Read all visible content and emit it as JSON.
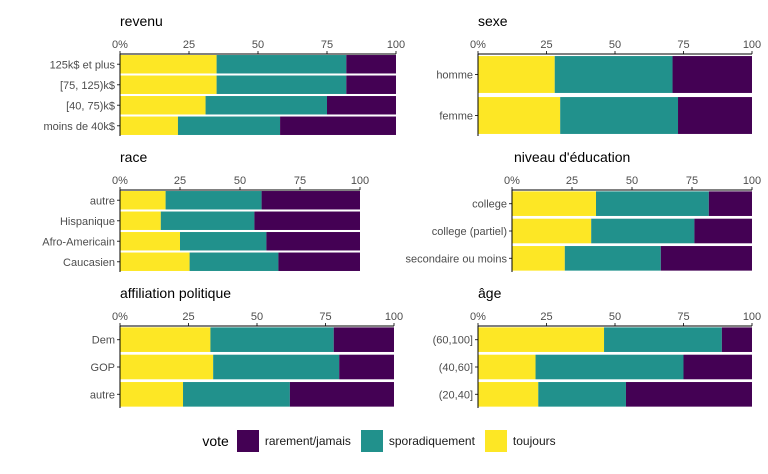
{
  "chart_data": [
    {
      "type": "bar",
      "title": "revenu",
      "categories": [
        "125k$ et plus",
        "[75, 125)k$",
        "[40, 75)k$",
        "moins de 40k$"
      ],
      "series": [
        {
          "name": "toujours",
          "values": [
            35,
            35,
            31,
            21
          ]
        },
        {
          "name": "sporadiquement",
          "values": [
            47,
            47,
            44,
            37
          ]
        },
        {
          "name": "rarement/jamais",
          "values": [
            18,
            18,
            25,
            42
          ]
        }
      ],
      "xlim": [
        0,
        100
      ],
      "xticks": [
        "0%",
        "25",
        "50",
        "75",
        "100"
      ]
    },
    {
      "type": "bar",
      "title": "sexe",
      "categories": [
        "homme",
        "femme"
      ],
      "series": [
        {
          "name": "toujours",
          "values": [
            28,
            30
          ]
        },
        {
          "name": "sporadiquement",
          "values": [
            43,
            43
          ]
        },
        {
          "name": "rarement/jamais",
          "values": [
            29,
            27
          ]
        }
      ],
      "xlim": [
        0,
        100
      ],
      "xticks": [
        "0%",
        "25",
        "50",
        "75",
        "100"
      ]
    },
    {
      "type": "bar",
      "title": "race",
      "categories": [
        "autre",
        "Hispanique",
        "Afro-Americain",
        "Caucasien"
      ],
      "series": [
        {
          "name": "toujours",
          "values": [
            19,
            17,
            25,
            29
          ]
        },
        {
          "name": "sporadiquement",
          "values": [
            40,
            39,
            36,
            37
          ]
        },
        {
          "name": "rarement/jamais",
          "values": [
            41,
            44,
            39,
            34
          ]
        }
      ],
      "xlim": [
        0,
        100
      ],
      "xticks": [
        "0%",
        "25",
        "50",
        "75",
        "100"
      ]
    },
    {
      "type": "bar",
      "title": "niveau d'éducation",
      "categories": [
        "college",
        "college (partiel)",
        "secondaire ou moins"
      ],
      "series": [
        {
          "name": "toujours",
          "values": [
            35,
            33,
            22
          ]
        },
        {
          "name": "sporadiquement",
          "values": [
            47,
            43,
            40
          ]
        },
        {
          "name": "rarement/jamais",
          "values": [
            18,
            24,
            38
          ]
        }
      ],
      "xlim": [
        0,
        100
      ],
      "xticks": [
        "0%",
        "25",
        "50",
        "75",
        "100"
      ]
    },
    {
      "type": "bar",
      "title": "affiliation politique",
      "categories": [
        "Dem",
        "GOP",
        "autre"
      ],
      "series": [
        {
          "name": "toujours",
          "values": [
            33,
            34,
            23
          ]
        },
        {
          "name": "sporadiquement",
          "values": [
            45,
            46,
            39
          ]
        },
        {
          "name": "rarement/jamais",
          "values": [
            22,
            20,
            38
          ]
        }
      ],
      "xlim": [
        0,
        100
      ],
      "xticks": [
        "0%",
        "25",
        "50",
        "75",
        "100"
      ]
    },
    {
      "type": "bar",
      "title": "âge",
      "categories": [
        "(60,100]",
        "(40,60]",
        "(20,40]"
      ],
      "series": [
        {
          "name": "toujours",
          "values": [
            46,
            21,
            22
          ]
        },
        {
          "name": "sporadiquement",
          "values": [
            43,
            54,
            32
          ]
        },
        {
          "name": "rarement/jamais",
          "values": [
            11,
            25,
            46
          ]
        }
      ],
      "xlim": [
        0,
        100
      ],
      "xticks": [
        "0%",
        "25",
        "50",
        "75",
        "100"
      ]
    }
  ],
  "legend": {
    "title": "vote",
    "items": [
      {
        "label": "rarement/jamais",
        "color": "#440154"
      },
      {
        "label": "sporadiquement",
        "color": "#21918c"
      },
      {
        "label": "toujours",
        "color": "#fde725"
      }
    ]
  },
  "colors": {
    "toujours": "#fde725",
    "sporadiquement": "#21918c",
    "rarement/jamais": "#440154"
  }
}
